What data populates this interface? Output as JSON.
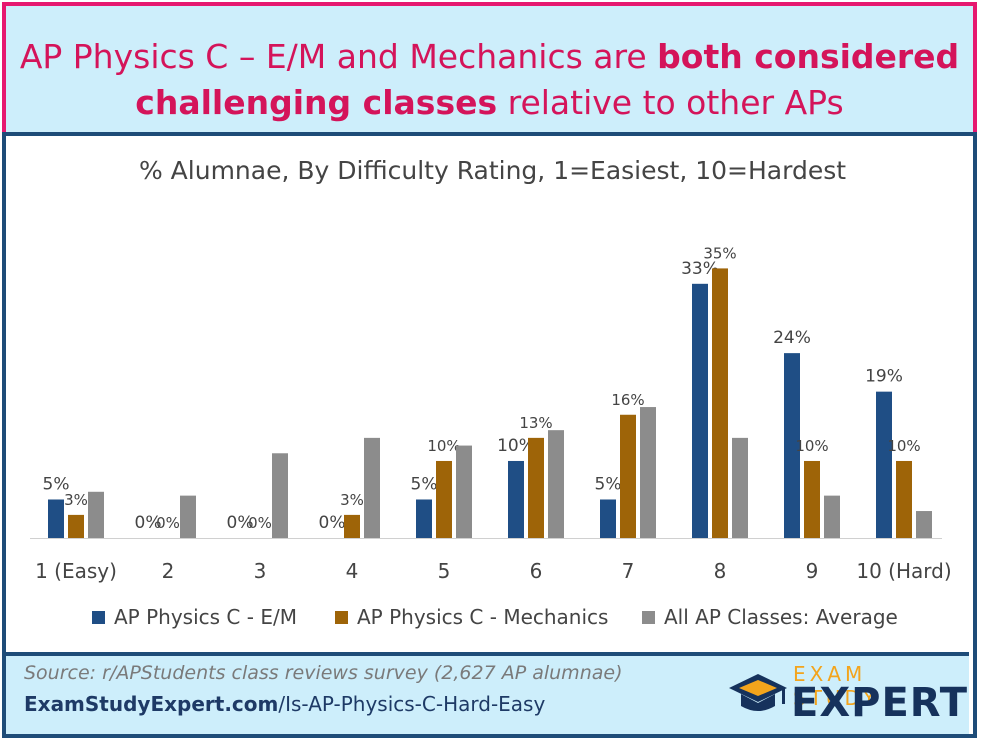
{
  "header": {
    "line1_normal": "AP Physics C – E/M and Mechanics are ",
    "line1_bold": "both considered",
    "line2_bold": "challenging classes",
    "line2_normal": " relative to other APs"
  },
  "colors": {
    "em": "#1f4e85",
    "mechanics": "#9e6408",
    "average": "#8c8c8c",
    "accent": "#e6186f",
    "frame": "#1e4c78"
  },
  "chart_data": {
    "type": "bar",
    "title": "% Alumnae, By Difficulty Rating, 1=Easiest, 10=Hardest",
    "categories": [
      "1 (Easy)",
      "2",
      "3",
      "4",
      "5",
      "6",
      "7",
      "8",
      "9",
      "10 (Hard)"
    ],
    "series": [
      {
        "name": "AP Physics C - E/M",
        "values": [
          5,
          0,
          0,
          0,
          5,
          10,
          5,
          33,
          24,
          19
        ],
        "labels": [
          "5%",
          "0%",
          "0%",
          "0%",
          "5%",
          "10%",
          "5%",
          "33%",
          "24%",
          "19%"
        ]
      },
      {
        "name": "AP Physics C - Mechanics",
        "values": [
          3,
          0,
          0,
          3,
          10,
          13,
          16,
          35,
          10,
          10
        ],
        "labels": [
          "3%",
          "0%",
          "0%",
          "3%",
          "10%",
          "13%",
          "16%",
          "35%",
          "10%",
          "10%"
        ]
      },
      {
        "name": "All AP Classes: Average",
        "values": [
          6,
          5.5,
          11,
          13,
          12,
          14,
          17,
          13,
          5.5,
          3.5
        ],
        "labels": []
      }
    ],
    "ylim": [
      0,
      37
    ],
    "legend_position": "bottom"
  },
  "footer": {
    "source": "Source: r/APStudents class reviews survey (2,627 AP alumnae)",
    "url_bold": "ExamStudyExpert.com",
    "url_rest": "/Is-AP-Physics-C-Hard-Easy",
    "logo_top": "EXAM STUDY",
    "logo_main": "EXPERT"
  }
}
